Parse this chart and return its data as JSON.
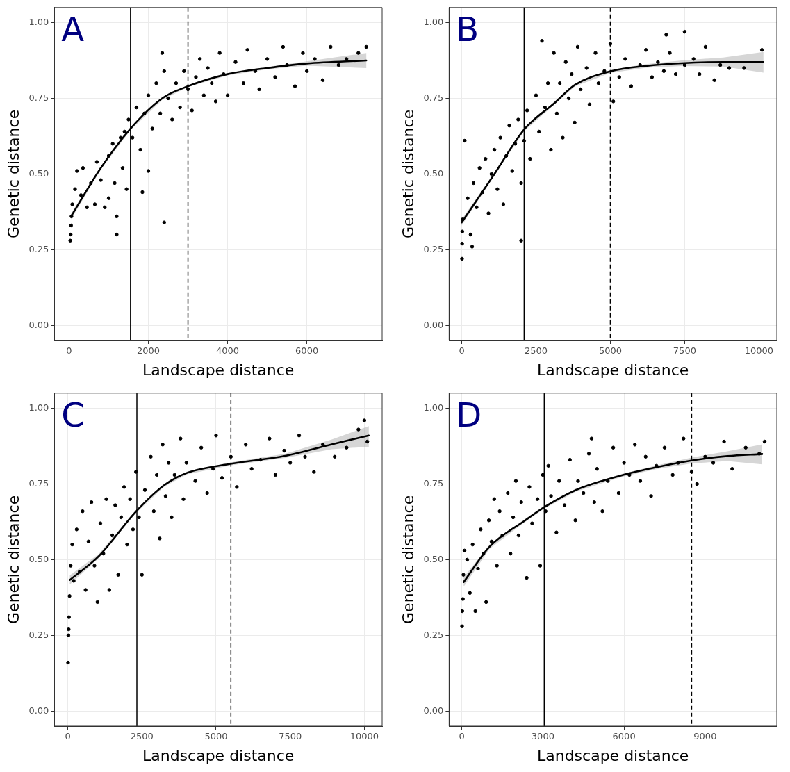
{
  "chart_data": [
    {
      "type": "scatter",
      "xlabel": "Landscape distance",
      "ylabel": "Genetic distance",
      "annotations": [
        "A"
      ],
      "grid": true,
      "xlim": [
        -370,
        7900
      ],
      "ylim": [
        -0.05,
        1.05
      ],
      "xticks": [
        0,
        2000,
        4000,
        6000
      ],
      "yticks": [
        {
          "value": 0,
          "label": "0.00"
        },
        {
          "value": 0.25,
          "label": "0.25"
        },
        {
          "value": 0.5,
          "label": "0.50"
        },
        {
          "value": 0.75,
          "label": "0.75"
        },
        {
          "value": 1,
          "label": "1.00"
        }
      ],
      "ref_lines": [
        {
          "axis": "x",
          "value": 1550,
          "color": "#000000",
          "line_style": "solid"
        },
        {
          "axis": "x",
          "value": 3000,
          "color": "#000000",
          "line_style": "dashed"
        }
      ],
      "series": [
        {
          "type": "scatter",
          "marker": "circle",
          "color": "#000000",
          "x": [
            30,
            40,
            50,
            60,
            80,
            150,
            200,
            300,
            350,
            450,
            550,
            650,
            700,
            800,
            900,
            1000,
            1000,
            1100,
            1150,
            1200,
            1300,
            1350,
            1400,
            1450,
            1500,
            1200,
            2400,
            1850,
            2000,
            1600,
            1700,
            1800,
            1900,
            2000,
            2100,
            2200,
            2300,
            2400,
            2500,
            2600,
            2700,
            2800,
            2900,
            3000,
            2350,
            3100,
            3200,
            3300,
            3400,
            3500,
            3600,
            3700,
            3800,
            3900,
            4000,
            4200,
            4400,
            4500,
            4700,
            4800,
            5000,
            5200,
            5400,
            5500,
            5700,
            5900,
            6000,
            6200,
            6400,
            6600,
            6800,
            7000,
            7300,
            7500
          ],
          "values": [
            0.28,
            0.3,
            0.33,
            0.36,
            0.4,
            0.45,
            0.51,
            0.43,
            0.52,
            0.39,
            0.47,
            0.4,
            0.54,
            0.48,
            0.39,
            0.42,
            0.56,
            0.6,
            0.47,
            0.36,
            0.62,
            0.52,
            0.64,
            0.45,
            0.68,
            0.3,
            0.34,
            0.44,
            0.51,
            0.62,
            0.72,
            0.58,
            0.7,
            0.76,
            0.65,
            0.8,
            0.7,
            0.84,
            0.75,
            0.68,
            0.8,
            0.72,
            0.84,
            0.78,
            0.9,
            0.71,
            0.82,
            0.88,
            0.76,
            0.85,
            0.8,
            0.74,
            0.9,
            0.83,
            0.76,
            0.87,
            0.8,
            0.91,
            0.84,
            0.78,
            0.88,
            0.82,
            0.92,
            0.86,
            0.79,
            0.9,
            0.84,
            0.88,
            0.81,
            0.92,
            0.86,
            0.88,
            0.9,
            0.92
          ]
        },
        {
          "type": "line",
          "marker": "none",
          "color": "#000000",
          "x": [
            50,
            800,
            1550,
            2350,
            3000,
            4000,
            5000,
            6000,
            7500
          ],
          "values": [
            0.36,
            0.52,
            0.65,
            0.75,
            0.79,
            0.83,
            0.85,
            0.865,
            0.875
          ],
          "lower": [
            0.35,
            0.515,
            0.645,
            0.745,
            0.787,
            0.826,
            0.846,
            0.858,
            0.85
          ],
          "upper": [
            0.37,
            0.525,
            0.655,
            0.755,
            0.793,
            0.834,
            0.854,
            0.872,
            0.9
          ]
        }
      ]
    },
    {
      "type": "scatter",
      "xlabel": "Landscape distance",
      "ylabel": "Genetic distance",
      "annotations": [
        "B"
      ],
      "grid": true,
      "xlim": [
        -425,
        10600
      ],
      "ylim": [
        -0.05,
        1.05
      ],
      "xticks": [
        0,
        2500,
        5000,
        7500,
        10000
      ],
      "yticks": [
        {
          "value": 0,
          "label": "0.00"
        },
        {
          "value": 0.25,
          "label": "0.25"
        },
        {
          "value": 0.5,
          "label": "0.50"
        },
        {
          "value": 0.75,
          "label": "0.75"
        },
        {
          "value": 1,
          "label": "1.00"
        }
      ],
      "ref_lines": [
        {
          "axis": "x",
          "value": 2100,
          "color": "#000000",
          "line_style": "solid"
        },
        {
          "axis": "x",
          "value": 5000,
          "color": "#000000",
          "line_style": "dashed"
        }
      ],
      "series": [
        {
          "type": "scatter",
          "marker": "circle",
          "color": "#000000",
          "x": [
            10,
            15,
            20,
            30,
            100,
            200,
            300,
            350,
            400,
            500,
            600,
            700,
            800,
            900,
            1000,
            1100,
            1200,
            1300,
            1400,
            1500,
            1600,
            1700,
            1800,
            1900,
            2000,
            2000,
            2100,
            2200,
            2300,
            2500,
            2600,
            2700,
            2800,
            2900,
            3000,
            3100,
            3200,
            3300,
            3400,
            3500,
            3600,
            3700,
            3800,
            3900,
            4000,
            4200,
            4300,
            4500,
            4600,
            4800,
            5000,
            5100,
            5300,
            5500,
            5700,
            6000,
            6200,
            6400,
            6600,
            6800,
            6880,
            7000,
            7200,
            7500,
            7500,
            7800,
            8000,
            8200,
            8500,
            8700,
            9000,
            9500,
            10100
          ],
          "values": [
            0.22,
            0.27,
            0.31,
            0.35,
            0.61,
            0.42,
            0.3,
            0.26,
            0.47,
            0.39,
            0.52,
            0.44,
            0.55,
            0.37,
            0.5,
            0.58,
            0.45,
            0.62,
            0.4,
            0.56,
            0.66,
            0.51,
            0.6,
            0.68,
            0.28,
            0.47,
            0.61,
            0.71,
            0.55,
            0.76,
            0.64,
            0.94,
            0.72,
            0.8,
            0.58,
            0.9,
            0.7,
            0.8,
            0.62,
            0.87,
            0.75,
            0.83,
            0.67,
            0.92,
            0.78,
            0.85,
            0.73,
            0.9,
            0.8,
            0.84,
            0.93,
            0.74,
            0.82,
            0.88,
            0.79,
            0.86,
            0.91,
            0.82,
            0.87,
            0.84,
            0.96,
            0.9,
            0.83,
            0.86,
            0.97,
            0.88,
            0.83,
            0.92,
            0.81,
            0.86,
            0.85,
            0.85,
            0.91
          ]
        },
        {
          "type": "line",
          "marker": "none",
          "color": "#000000",
          "x": [
            0,
            1100,
            2100,
            3150,
            3800,
            5000,
            6200,
            7400,
            8800,
            10150
          ],
          "values": [
            0.34,
            0.5,
            0.647,
            0.737,
            0.794,
            0.839,
            0.857,
            0.866,
            0.87,
            0.87
          ],
          "lower": [
            0.33,
            0.495,
            0.642,
            0.732,
            0.789,
            0.834,
            0.851,
            0.857,
            0.855,
            0.835
          ],
          "upper": [
            0.35,
            0.505,
            0.652,
            0.742,
            0.799,
            0.844,
            0.863,
            0.875,
            0.885,
            0.903
          ]
        }
      ]
    },
    {
      "type": "scatter",
      "xlabel": "Landscape distance",
      "ylabel": "Genetic distance",
      "annotations": [
        "C"
      ],
      "grid": true,
      "xlim": [
        -450,
        10600
      ],
      "ylim": [
        -0.05,
        1.05
      ],
      "xticks": [
        0,
        2500,
        5000,
        7500,
        10000
      ],
      "yticks": [
        {
          "value": 0,
          "label": "0.00"
        },
        {
          "value": 0.25,
          "label": "0.25"
        },
        {
          "value": 0.5,
          "label": "0.50"
        },
        {
          "value": 0.75,
          "label": "0.75"
        },
        {
          "value": 1,
          "label": "1.00"
        }
      ],
      "ref_lines": [
        {
          "axis": "x",
          "value": 2330,
          "color": "#000000",
          "line_style": "solid"
        },
        {
          "axis": "x",
          "value": 5500,
          "color": "#000000",
          "line_style": "dashed"
        }
      ],
      "series": [
        {
          "type": "scatter",
          "marker": "circle",
          "color": "#000000",
          "x": [
            10,
            20,
            30,
            40,
            60,
            100,
            150,
            200,
            300,
            400,
            500,
            600,
            700,
            800,
            900,
            1000,
            1100,
            1200,
            1300,
            1400,
            1500,
            1600,
            1700,
            1800,
            1900,
            2000,
            2100,
            2200,
            2300,
            2400,
            2500,
            2600,
            2800,
            2900,
            3000,
            3100,
            3200,
            3300,
            3400,
            3500,
            3600,
            3800,
            3900,
            4000,
            4300,
            4500,
            4700,
            4900,
            5000,
            5200,
            5500,
            5700,
            6000,
            6200,
            6500,
            6800,
            7000,
            7300,
            7500,
            7800,
            8000,
            8300,
            8600,
            9000,
            9400,
            9800,
            10000,
            10100
          ],
          "values": [
            0.16,
            0.25,
            0.27,
            0.31,
            0.38,
            0.48,
            0.55,
            0.43,
            0.6,
            0.46,
            0.66,
            0.4,
            0.56,
            0.69,
            0.48,
            0.36,
            0.62,
            0.52,
            0.7,
            0.4,
            0.58,
            0.68,
            0.45,
            0.64,
            0.74,
            0.55,
            0.7,
            0.6,
            0.79,
            0.64,
            0.45,
            0.73,
            0.84,
            0.66,
            0.78,
            0.57,
            0.88,
            0.71,
            0.82,
            0.64,
            0.78,
            0.9,
            0.7,
            0.82,
            0.76,
            0.87,
            0.72,
            0.8,
            0.91,
            0.77,
            0.84,
            0.74,
            0.88,
            0.8,
            0.83,
            0.9,
            0.78,
            0.86,
            0.82,
            0.91,
            0.84,
            0.79,
            0.88,
            0.84,
            0.87,
            0.93,
            0.96,
            0.89
          ]
        },
        {
          "type": "line",
          "marker": "none",
          "color": "#000000",
          "x": [
            70,
            1050,
            2300,
            3250,
            4030,
            5520,
            7330,
            8900,
            10150
          ],
          "values": [
            0.433,
            0.512,
            0.659,
            0.746,
            0.787,
            0.817,
            0.843,
            0.881,
            0.91
          ],
          "lower": [
            0.418,
            0.505,
            0.654,
            0.741,
            0.782,
            0.812,
            0.836,
            0.865,
            0.873
          ],
          "upper": [
            0.448,
            0.519,
            0.664,
            0.751,
            0.792,
            0.822,
            0.85,
            0.897,
            0.941
          ]
        }
      ]
    },
    {
      "type": "scatter",
      "xlabel": "Landscape distance",
      "ylabel": "Genetic distance",
      "annotations": [
        "D"
      ],
      "grid": true,
      "xlim": [
        -470,
        11650
      ],
      "ylim": [
        -0.05,
        1.05
      ],
      "xticks": [
        0,
        3000,
        6000,
        9000
      ],
      "yticks": [
        {
          "value": 0,
          "label": "0.00"
        },
        {
          "value": 0.25,
          "label": "0.25"
        },
        {
          "value": 0.5,
          "label": "0.50"
        },
        {
          "value": 0.75,
          "label": "0.75"
        },
        {
          "value": 1,
          "label": "1.00"
        }
      ],
      "ref_lines": [
        {
          "axis": "x",
          "value": 3050,
          "color": "#000000",
          "line_style": "solid"
        },
        {
          "axis": "x",
          "value": 8500,
          "color": "#000000",
          "line_style": "dashed"
        }
      ],
      "series": [
        {
          "type": "scatter",
          "marker": "circle",
          "color": "#000000",
          "x": [
            10,
            20,
            40,
            60,
            100,
            200,
            300,
            400,
            500,
            600,
            700,
            800,
            900,
            1000,
            1100,
            1200,
            1300,
            1400,
            1500,
            1700,
            1800,
            1900,
            2000,
            2100,
            2200,
            2400,
            2500,
            2600,
            2800,
            2900,
            3000,
            3100,
            3200,
            3300,
            3500,
            3600,
            3800,
            4000,
            4200,
            4300,
            4500,
            4700,
            4800,
            4900,
            5000,
            5200,
            5400,
            5600,
            5800,
            6000,
            6200,
            6400,
            6600,
            6800,
            7000,
            7200,
            7500,
            7800,
            8000,
            8200,
            8500,
            8700,
            9000,
            9300,
            9700,
            10000,
            10500,
            11000,
            11200
          ],
          "values": [
            0.28,
            0.33,
            0.37,
            0.45,
            0.53,
            0.5,
            0.39,
            0.55,
            0.33,
            0.47,
            0.6,
            0.52,
            0.36,
            0.63,
            0.56,
            0.7,
            0.48,
            0.66,
            0.58,
            0.72,
            0.52,
            0.64,
            0.76,
            0.58,
            0.69,
            0.44,
            0.74,
            0.62,
            0.7,
            0.48,
            0.78,
            0.66,
            0.81,
            0.71,
            0.59,
            0.76,
            0.68,
            0.83,
            0.63,
            0.76,
            0.72,
            0.85,
            0.9,
            0.69,
            0.8,
            0.66,
            0.76,
            0.87,
            0.72,
            0.82,
            0.78,
            0.88,
            0.76,
            0.84,
            0.71,
            0.81,
            0.87,
            0.78,
            0.82,
            0.9,
            0.79,
            0.75,
            0.84,
            0.82,
            0.89,
            0.8,
            0.87,
            0.85,
            0.89
          ]
        },
        {
          "type": "line",
          "marker": "none",
          "color": "#000000",
          "x": [
            70,
            1030,
            2330,
            3060,
            4220,
            5940,
            7240,
            8530,
            9820,
            11110
          ],
          "values": [
            0.426,
            0.543,
            0.629,
            0.674,
            0.73,
            0.779,
            0.806,
            0.828,
            0.842,
            0.849
          ],
          "lower": [
            0.411,
            0.536,
            0.624,
            0.669,
            0.725,
            0.774,
            0.8,
            0.818,
            0.826,
            0.815
          ],
          "upper": [
            0.441,
            0.55,
            0.634,
            0.679,
            0.735,
            0.784,
            0.812,
            0.838,
            0.858,
            0.881
          ]
        }
      ]
    }
  ]
}
